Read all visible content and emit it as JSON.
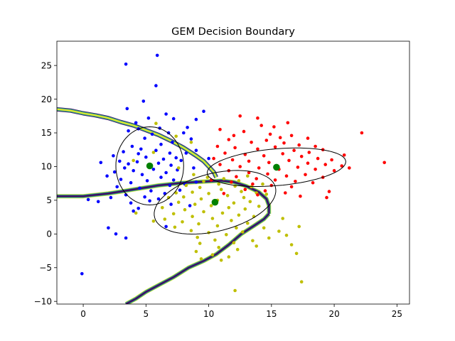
{
  "chart_data": {
    "type": "scatter",
    "title": "GEM Decision Boundary",
    "xlabel": "",
    "ylabel": "",
    "xlim": [
      -2.1,
      26.0
    ],
    "ylim": [
      -10.4,
      28.6
    ],
    "xticks": [
      0,
      5,
      10,
      15,
      20,
      25
    ],
    "yticks": [
      -10,
      -5,
      0,
      5,
      10,
      15,
      20,
      25
    ],
    "grid": false,
    "legend": "none",
    "colors": {
      "blue_cluster": "#0000ff",
      "yellow_cluster": "#bfbf00",
      "red_cluster": "#ff0000",
      "centers": "#008000",
      "ellipse": "#000000",
      "boundary_colors": [
        "#440154",
        "#3b528b",
        "#21918c",
        "#5ec962",
        "#fde725"
      ]
    },
    "clusters": [
      {
        "color": "#0000ff",
        "center": [
          5.3,
          10.1
        ],
        "ellipse": {
          "rx": 2.7,
          "ry": 5.8,
          "angle": 0
        },
        "points": [
          [
            3.4,
            25.2
          ],
          [
            5.9,
            26.5
          ],
          [
            5.8,
            22.0
          ],
          [
            3.5,
            18.6
          ],
          [
            4.8,
            19.7
          ],
          [
            5.2,
            17.2
          ],
          [
            6.6,
            17.8
          ],
          [
            7.2,
            17.1
          ],
          [
            9.0,
            17.0
          ],
          [
            8.3,
            15.8
          ],
          [
            8.0,
            15.0
          ],
          [
            8.6,
            14.1
          ],
          [
            9.6,
            18.2
          ],
          [
            4.2,
            16.5
          ],
          [
            4.4,
            15.6
          ],
          [
            3.6,
            15.3
          ],
          [
            6.8,
            15.0
          ],
          [
            5.5,
            14.8
          ],
          [
            6.1,
            15.7
          ],
          [
            4.9,
            14.2
          ],
          [
            7.1,
            13.6
          ],
          [
            6.2,
            13.3
          ],
          [
            3.9,
            13.0
          ],
          [
            4.6,
            12.6
          ],
          [
            5.8,
            12.4
          ],
          [
            6.9,
            12.0
          ],
          [
            3.2,
            12.2
          ],
          [
            2.4,
            11.6
          ],
          [
            4.4,
            11.9
          ],
          [
            5.0,
            11.4
          ],
          [
            6.4,
            11.1
          ],
          [
            7.4,
            11.3
          ],
          [
            8.2,
            12.0
          ],
          [
            9.0,
            12.4
          ],
          [
            10.0,
            11.2
          ],
          [
            2.9,
            10.8
          ],
          [
            3.6,
            10.4
          ],
          [
            4.3,
            10.7
          ],
          [
            6.0,
            10.5
          ],
          [
            7.0,
            10.2
          ],
          [
            7.8,
            10.9
          ],
          [
            3.3,
            9.8
          ],
          [
            4.0,
            9.4
          ],
          [
            5.6,
            9.6
          ],
          [
            6.6,
            9.1
          ],
          [
            7.5,
            9.5
          ],
          [
            8.8,
            9.8
          ],
          [
            2.5,
            9.2
          ],
          [
            4.7,
            8.8
          ],
          [
            6.2,
            8.4
          ],
          [
            7.2,
            8.0
          ],
          [
            1.9,
            8.6
          ],
          [
            3.0,
            8.1
          ],
          [
            3.8,
            7.6
          ],
          [
            5.1,
            7.9
          ],
          [
            6.9,
            7.2
          ],
          [
            8.1,
            7.4
          ],
          [
            9.0,
            7.7
          ],
          [
            2.7,
            7.0
          ],
          [
            4.5,
            6.8
          ],
          [
            5.4,
            6.4
          ],
          [
            6.5,
            6.0
          ],
          [
            7.7,
            6.5
          ],
          [
            3.4,
            5.8
          ],
          [
            4.9,
            5.5
          ],
          [
            6.0,
            5.2
          ],
          [
            2.2,
            5.4
          ],
          [
            3.8,
            4.6
          ],
          [
            5.3,
            4.9
          ],
          [
            7.0,
            4.4
          ],
          [
            0.4,
            5.1
          ],
          [
            1.2,
            4.8
          ],
          [
            4.4,
            3.8
          ],
          [
            4.0,
            3.4
          ],
          [
            6.6,
            1.1
          ],
          [
            2.0,
            0.9
          ],
          [
            2.6,
            0.0
          ],
          [
            3.4,
            -0.6
          ],
          [
            -0.1,
            -5.9
          ],
          [
            8.5,
            4.2
          ],
          [
            1.4,
            10.6
          ]
        ]
      },
      {
        "color": "#bfbf00",
        "center": [
          10.5,
          4.7
        ],
        "ellipse": {
          "rx": 3.8,
          "ry": 5.6,
          "angle": -47
        },
        "points": [
          [
            5.8,
            16.4
          ],
          [
            7.4,
            14.5
          ],
          [
            8.6,
            13.6
          ],
          [
            5.6,
            12.1
          ],
          [
            4.0,
            10.9
          ],
          [
            7.6,
            9.8
          ],
          [
            8.8,
            8.8
          ],
          [
            9.9,
            8.4
          ],
          [
            11.2,
            8.2
          ],
          [
            12.4,
            7.9
          ],
          [
            13.1,
            8.6
          ],
          [
            9.6,
            7.8
          ],
          [
            10.8,
            7.4
          ],
          [
            12.1,
            7.1
          ],
          [
            13.4,
            7.0
          ],
          [
            14.3,
            7.4
          ],
          [
            8.2,
            7.2
          ],
          [
            9.3,
            6.9
          ],
          [
            11.0,
            6.6
          ],
          [
            12.6,
            6.3
          ],
          [
            13.8,
            6.1
          ],
          [
            7.4,
            6.1
          ],
          [
            8.7,
            6.2
          ],
          [
            10.0,
            6.0
          ],
          [
            11.5,
            5.7
          ],
          [
            12.8,
            5.4
          ],
          [
            14.6,
            5.9
          ],
          [
            6.8,
            5.4
          ],
          [
            8.0,
            5.5
          ],
          [
            9.4,
            5.2
          ],
          [
            10.7,
            5.0
          ],
          [
            12.0,
            4.6
          ],
          [
            13.3,
            4.8
          ],
          [
            7.6,
            4.7
          ],
          [
            8.9,
            4.4
          ],
          [
            10.2,
            4.2
          ],
          [
            11.6,
            3.9
          ],
          [
            12.9,
            3.7
          ],
          [
            14.0,
            4.1
          ],
          [
            6.3,
            3.9
          ],
          [
            8.1,
            3.6
          ],
          [
            9.6,
            3.3
          ],
          [
            11.1,
            3.1
          ],
          [
            12.4,
            2.8
          ],
          [
            13.6,
            2.6
          ],
          [
            7.2,
            3.0
          ],
          [
            8.7,
            2.6
          ],
          [
            10.3,
            2.3
          ],
          [
            11.8,
            2.0
          ],
          [
            13.1,
            1.6
          ],
          [
            6.5,
            2.2
          ],
          [
            7.9,
            1.8
          ],
          [
            9.2,
            1.5
          ],
          [
            10.7,
            1.2
          ],
          [
            12.2,
            0.9
          ],
          [
            7.3,
            1.0
          ],
          [
            8.6,
            0.5
          ],
          [
            10.0,
            0.2
          ],
          [
            11.4,
            -0.1
          ],
          [
            12.7,
            0.3
          ],
          [
            9.1,
            -0.5
          ],
          [
            10.5,
            -0.9
          ],
          [
            12.0,
            -1.3
          ],
          [
            13.5,
            -1.0
          ],
          [
            14.8,
            -0.6
          ],
          [
            15.6,
            0.4
          ],
          [
            16.2,
            -0.2
          ],
          [
            17.2,
            1.1
          ],
          [
            16.6,
            -1.6
          ],
          [
            9.3,
            -1.4
          ],
          [
            10.8,
            -2.0
          ],
          [
            12.3,
            -2.3
          ],
          [
            13.8,
            -1.8
          ],
          [
            9.0,
            -2.6
          ],
          [
            10.3,
            -3.1
          ],
          [
            11.6,
            -3.4
          ],
          [
            9.4,
            -3.7
          ],
          [
            11.0,
            -3.9
          ],
          [
            17.0,
            -2.9
          ],
          [
            17.4,
            -7.1
          ],
          [
            12.1,
            -8.4
          ],
          [
            4.2,
            3.1
          ],
          [
            5.6,
            1.9
          ],
          [
            15.9,
            2.3
          ],
          [
            14.4,
            0.9
          ]
        ]
      },
      {
        "color": "#ff0000",
        "center": [
          15.4,
          9.9
        ],
        "ellipse": {
          "rx": 2.7,
          "ry": 5.6,
          "angle": -79
        },
        "points": [
          [
            12.5,
            17.5
          ],
          [
            14.2,
            16.1
          ],
          [
            16.3,
            16.5
          ],
          [
            10.9,
            15.5
          ],
          [
            12.8,
            15.2
          ],
          [
            14.9,
            14.8
          ],
          [
            15.7,
            14.3
          ],
          [
            16.6,
            14.6
          ],
          [
            17.9,
            14.2
          ],
          [
            11.6,
            14.0
          ],
          [
            13.4,
            13.6
          ],
          [
            14.6,
            13.9
          ],
          [
            16.0,
            13.5
          ],
          [
            17.2,
            13.2
          ],
          [
            18.5,
            13.0
          ],
          [
            10.7,
            13.0
          ],
          [
            12.1,
            12.8
          ],
          [
            13.9,
            12.6
          ],
          [
            15.3,
            12.9
          ],
          [
            16.8,
            12.4
          ],
          [
            18.0,
            12.1
          ],
          [
            19.1,
            12.5
          ],
          [
            11.3,
            12.0
          ],
          [
            12.9,
            11.8
          ],
          [
            14.4,
            11.6
          ],
          [
            15.9,
            11.9
          ],
          [
            17.4,
            11.5
          ],
          [
            18.7,
            11.2
          ],
          [
            19.8,
            11.0
          ],
          [
            10.4,
            11.2
          ],
          [
            11.9,
            11.0
          ],
          [
            13.2,
            10.8
          ],
          [
            14.8,
            10.6
          ],
          [
            16.4,
            10.9
          ],
          [
            17.9,
            10.5
          ],
          [
            19.3,
            10.3
          ],
          [
            20.6,
            10.1
          ],
          [
            10.9,
            10.3
          ],
          [
            12.5,
            10.0
          ],
          [
            14.0,
            9.8
          ],
          [
            15.6,
            9.6
          ],
          [
            17.1,
            9.9
          ],
          [
            18.5,
            9.6
          ],
          [
            20.0,
            9.4
          ],
          [
            21.2,
            9.8
          ],
          [
            11.6,
            9.4
          ],
          [
            13.2,
            9.1
          ],
          [
            14.7,
            8.9
          ],
          [
            16.2,
            8.6
          ],
          [
            17.7,
            8.8
          ],
          [
            19.1,
            8.4
          ],
          [
            12.2,
            8.5
          ],
          [
            13.8,
            8.2
          ],
          [
            15.3,
            8.0
          ],
          [
            16.9,
            7.8
          ],
          [
            18.3,
            7.6
          ],
          [
            10.2,
            8.0
          ],
          [
            11.8,
            7.7
          ],
          [
            13.5,
            7.4
          ],
          [
            15.0,
            7.2
          ],
          [
            16.6,
            7.0
          ],
          [
            12.9,
            6.6
          ],
          [
            14.5,
            6.4
          ],
          [
            16.1,
            6.1
          ],
          [
            19.6,
            6.3
          ],
          [
            11.2,
            6.0
          ],
          [
            13.9,
            5.8
          ],
          [
            17.3,
            5.6
          ],
          [
            19.4,
            5.4
          ],
          [
            22.2,
            15.0
          ],
          [
            24.0,
            10.6
          ],
          [
            20.8,
            11.7
          ],
          [
            13.9,
            17.2
          ],
          [
            12.0,
            14.6
          ],
          [
            15.2,
            15.9
          ]
        ]
      }
    ],
    "boundaries": [
      {
        "name": "blue-yellow-upper",
        "points": [
          [
            -2.1,
            18.5
          ],
          [
            -1.0,
            18.3
          ],
          [
            0.0,
            17.9
          ],
          [
            1.0,
            17.6
          ],
          [
            2.0,
            17.2
          ],
          [
            3.0,
            16.6
          ],
          [
            4.0,
            16.1
          ],
          [
            5.0,
            15.4
          ],
          [
            6.0,
            14.7
          ],
          [
            7.0,
            13.8
          ],
          [
            8.0,
            12.8
          ],
          [
            9.0,
            11.6
          ],
          [
            9.6,
            10.8
          ],
          [
            10.0,
            10.0
          ],
          [
            10.4,
            9.2
          ],
          [
            10.6,
            8.4
          ]
        ]
      },
      {
        "name": "blue-yellow-lower",
        "points": [
          [
            -2.1,
            5.6
          ],
          [
            0.0,
            5.6
          ],
          [
            1.0,
            5.8
          ],
          [
            2.0,
            6.0
          ],
          [
            3.0,
            6.3
          ],
          [
            4.0,
            6.6
          ],
          [
            5.0,
            6.9
          ],
          [
            6.0,
            7.2
          ],
          [
            7.0,
            7.4
          ],
          [
            8.0,
            7.6
          ],
          [
            9.0,
            7.7
          ],
          [
            10.0,
            7.8
          ],
          [
            11.0,
            7.9
          ],
          [
            12.0,
            7.7
          ],
          [
            13.0,
            7.1
          ],
          [
            14.0,
            6.2
          ],
          [
            14.6,
            5.2
          ],
          [
            14.8,
            4.2
          ],
          [
            14.8,
            3.0
          ]
        ]
      },
      {
        "name": "yellow-red-lower",
        "points": [
          [
            14.8,
            3.0
          ],
          [
            14.4,
            2.2
          ],
          [
            13.6,
            1.2
          ],
          [
            12.6,
            0.0
          ],
          [
            11.6,
            -1.6
          ],
          [
            10.6,
            -3.0
          ],
          [
            9.6,
            -4.0
          ],
          [
            8.4,
            -5.0
          ],
          [
            7.2,
            -6.4
          ],
          [
            6.0,
            -7.6
          ],
          [
            5.0,
            -8.6
          ],
          [
            4.2,
            -9.6
          ],
          [
            3.4,
            -10.4
          ]
        ]
      }
    ]
  }
}
